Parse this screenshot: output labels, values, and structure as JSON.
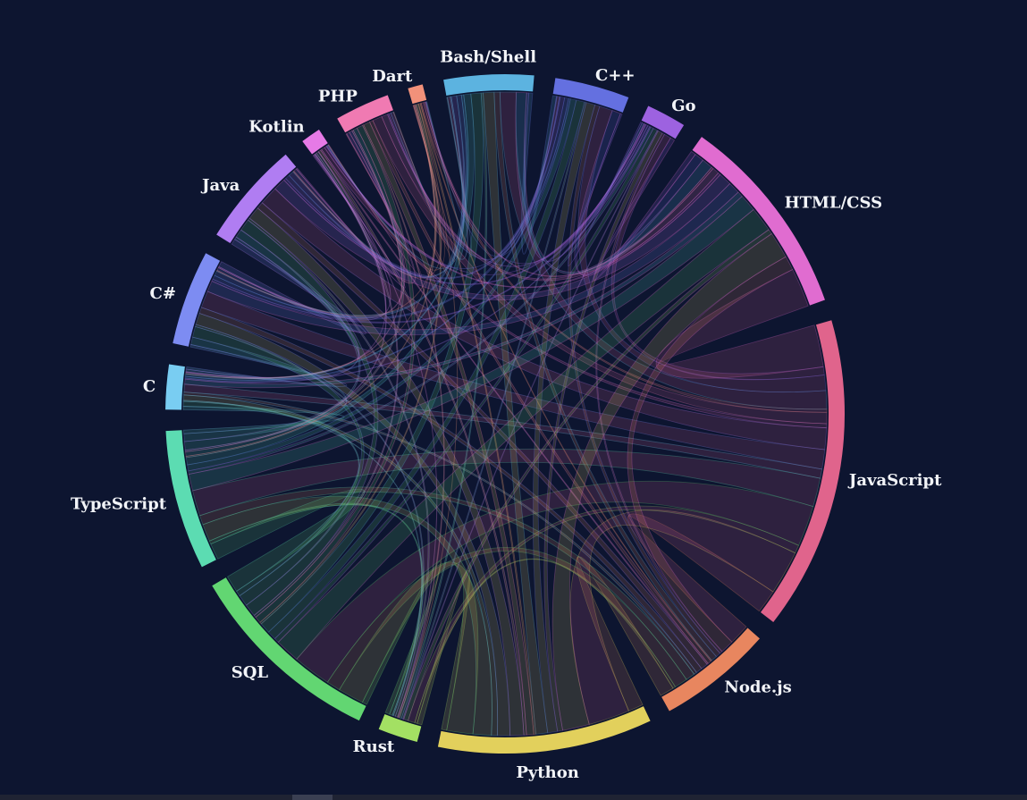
{
  "chart_data": {
    "type": "chord",
    "groups": [
      {
        "name": "JavaScript",
        "color": "#e0648c",
        "value": 63
      },
      {
        "name": "Node.js",
        "color": "#e8865f",
        "value": 23
      },
      {
        "name": "Python",
        "color": "#e2d05c",
        "value": 43
      },
      {
        "name": "Rust",
        "color": "#a3e063",
        "value": 8
      },
      {
        "name": "SQL",
        "color": "#62d672",
        "value": 40
      },
      {
        "name": "TypeScript",
        "color": "#5cdcb2",
        "value": 28
      },
      {
        "name": "C",
        "color": "#79cdf2",
        "value": 9
      },
      {
        "name": "C#",
        "color": "#7d8cf2",
        "value": 19
      },
      {
        "name": "Java",
        "color": "#b07df2",
        "value": 21
      },
      {
        "name": "Kotlin",
        "color": "#e67ae6",
        "value": 4
      },
      {
        "name": "PHP",
        "color": "#f07ab2",
        "value": 11
      },
      {
        "name": "Dart",
        "color": "#f2917a",
        "value": 3
      },
      {
        "name": "Bash/Shell",
        "color": "#5cb3e0",
        "value": 18
      },
      {
        "name": "C++",
        "color": "#6470e0",
        "value": 15
      },
      {
        "name": "Go",
        "color": "#9d62e0",
        "value": 8
      },
      {
        "name": "HTML/CSS",
        "color": "#e06cd0",
        "value": 41
      }
    ],
    "note": "ribbon flows between every pair of groups (overlap matrix not printed in image)"
  }
}
